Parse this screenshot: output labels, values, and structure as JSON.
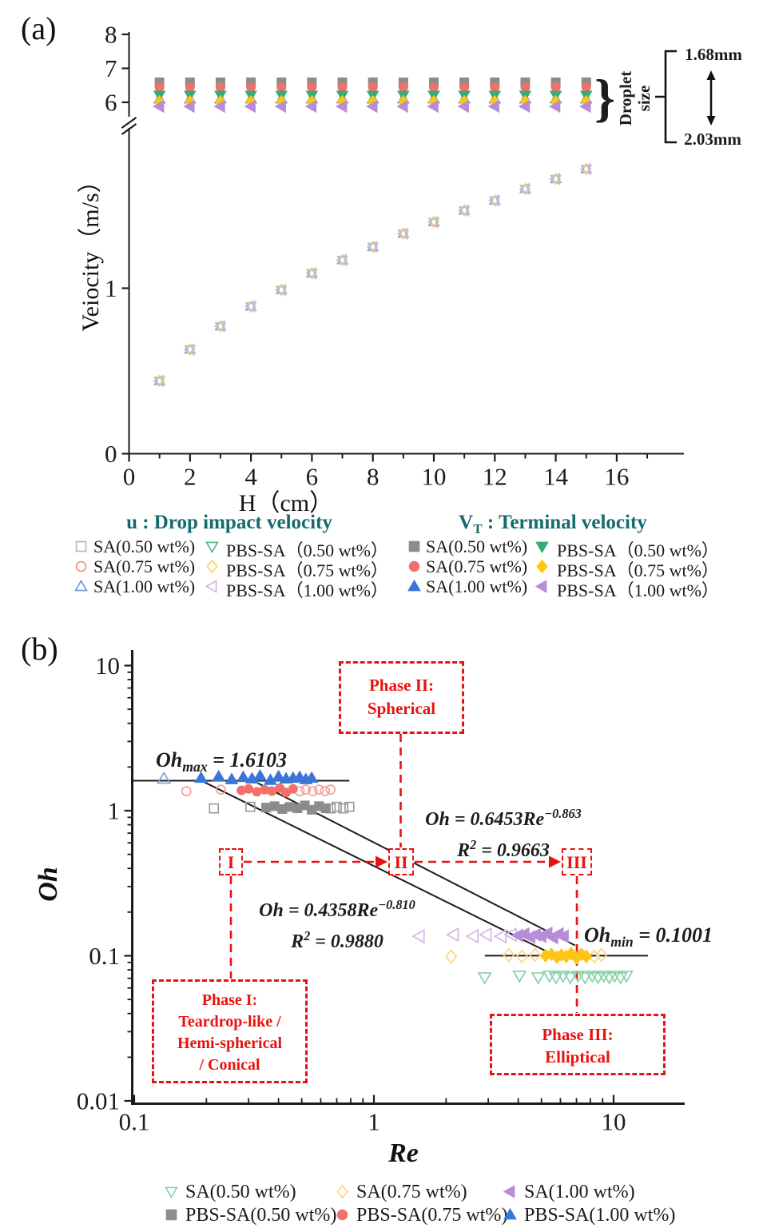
{
  "figure": {
    "panel_a_label": "(a)",
    "panel_b_label": "(b)"
  },
  "chart_data": [
    {
      "type": "scatter",
      "panel": "a",
      "xlabel": "H（cm）",
      "ylabel": "Veiocity（m/s）",
      "x_ticks": [
        0,
        2,
        4,
        6,
        8,
        10,
        12,
        14,
        16
      ],
      "x_minor_ticks": [
        1,
        3,
        5,
        7,
        9,
        11,
        13,
        15,
        17
      ],
      "y_upper_ticks": [
        8,
        7,
        6
      ],
      "y_lower_ticks": [
        1,
        0
      ],
      "y_axis_break": true,
      "xlim": [
        0,
        17.5
      ],
      "H": [
        1,
        2,
        3,
        4,
        5,
        6,
        7,
        8,
        9,
        10,
        11,
        12,
        13,
        14,
        15
      ],
      "impact_velocity": {
        "label": "u : Drop impact velocity",
        "values": [
          0.44,
          0.63,
          0.77,
          0.89,
          0.99,
          1.09,
          1.17,
          1.25,
          1.33,
          1.4,
          1.47,
          1.53,
          1.6,
          1.66,
          1.72
        ]
      },
      "impact_markers": [
        {
          "marker": "square",
          "color": "#b5b5b5"
        },
        {
          "marker": "circle",
          "color": "#f29a94"
        },
        {
          "marker": "triangle-up",
          "color": "#8aa6e4"
        },
        {
          "marker": "triangle-down",
          "color": "#8ed2ab"
        },
        {
          "marker": "diamond",
          "color": "#ffd060"
        },
        {
          "marker": "triangle-left",
          "color": "#cdb4e6"
        }
      ],
      "terminal_series": [
        {
          "name": "SA(1.00 wt%)",
          "marker": "triangle-up",
          "color": "#3a76d8",
          "velocity": 6.1
        },
        {
          "name": "SA(0.50 wt%)",
          "marker": "square",
          "color": "#8c8c8c",
          "velocity": 6.59
        },
        {
          "name": "SA(0.75 wt%)",
          "marker": "circle",
          "color": "#f2706c",
          "velocity": 6.44
        },
        {
          "name": "PBS-SA（0.50 wt%）",
          "marker": "triangle-down",
          "color": "#35ad72",
          "velocity": 6.21
        },
        {
          "name": "PBS-SA（0.75 wt%）",
          "marker": "diamond",
          "color": "#ffc514",
          "velocity": 6.02
        },
        {
          "name": "PBS-SA（1.00 wt%）",
          "marker": "triangle-left",
          "color": "#b78dd8",
          "velocity": 5.88
        }
      ],
      "droplet_annotation": {
        "brace": "}",
        "line1": "Droplet",
        "line2": "size",
        "top": "1.68mm",
        "bottom": "2.03mm"
      }
    },
    {
      "type": "scatter",
      "panel": "b",
      "xlabel": "Re",
      "ylabel": "Oh",
      "x_scale": "log",
      "y_scale": "log",
      "x_tick_labels": [
        "0.1",
        "1",
        "10"
      ],
      "x_tick_values": [
        0.1,
        1,
        10
      ],
      "y_tick_labels": [
        "10",
        "1",
        "0.1",
        "0.01"
      ],
      "y_tick_values": [
        10,
        1,
        0.1,
        0.01
      ],
      "oh_max": 1.6103,
      "oh_min": 0.1001,
      "fits": [
        {
          "equation": "Oh = 0.6453Re^-0.863",
          "r2": 0.9663
        },
        {
          "equation": "Oh = 0.4358Re^-0.810",
          "r2": 0.988
        }
      ],
      "series": [
        {
          "name": "SA(0.50 wt%)",
          "marker": "triangle-down",
          "color": "#85d1a8",
          "oh": 0.072,
          "re_open": [
            2.9,
            4.05,
            4.85,
            5.4,
            5.75,
            6.15,
            6.6,
            7.1,
            7.6,
            8.15,
            8.6,
            9.1,
            9.6,
            10.1,
            10.7,
            11.3
          ],
          "re_filled": []
        },
        {
          "name": "SA(0.75 wt%)",
          "marker": "diamond",
          "color": "#ffc514",
          "open_color": "#ffd67c",
          "oh": 0.1001,
          "re_open": [
            2.1,
            3.65,
            4.15,
            4.7,
            8.3,
            8.9
          ],
          "re_filled": [
            5.2,
            5.5,
            5.8,
            6.05,
            6.35,
            6.65,
            7.0,
            7.35,
            7.7
          ]
        },
        {
          "name": "SA(1.00 wt%)",
          "marker": "triangle-left",
          "color": "#b78dd8",
          "open_color": "#cfb7e8",
          "oh": 0.138,
          "re_open": [
            1.55,
            2.15,
            2.6,
            2.95,
            3.4,
            3.75
          ],
          "re_filled": [
            4.0,
            4.25,
            4.5,
            4.75,
            5.0,
            5.3,
            5.6,
            5.9,
            6.2
          ]
        },
        {
          "name": "PBS-SA(0.50 wt%)",
          "marker": "square",
          "color": "#8c8c8c",
          "open_color": "#9c9c9c",
          "oh": 1.05,
          "re_open": [
            0.215,
            0.305,
            0.66,
            0.7,
            0.745,
            0.79
          ],
          "re_filled": [
            0.355,
            0.385,
            0.415,
            0.445,
            0.48,
            0.515,
            0.55,
            0.59,
            0.63
          ]
        },
        {
          "name": "PBS-SA(0.75 wt%)",
          "marker": "circle",
          "color": "#f2706c",
          "open_color": "#f4a09a",
          "oh": 1.38,
          "re_open": [
            0.165,
            0.23,
            0.49,
            0.52,
            0.555,
            0.59,
            0.625,
            0.66
          ],
          "re_filled": [
            0.28,
            0.3,
            0.325,
            0.35,
            0.375,
            0.405,
            0.43,
            0.46
          ]
        },
        {
          "name": "PBS-SA(1.00 wt%)",
          "marker": "triangle-up",
          "color": "#3a76d8",
          "open_color": "#7f9de2",
          "oh": 1.68,
          "re_open": [
            0.133
          ],
          "re_filled": [
            0.19,
            0.225,
            0.255,
            0.285,
            0.31,
            0.335,
            0.37,
            0.4,
            0.43,
            0.46,
            0.49,
            0.52,
            0.55
          ]
        }
      ],
      "lines": {
        "ohmax": {
          "oh": 1.6103,
          "re_from": 0.1,
          "re_to": 0.79
        },
        "ohmin": {
          "oh": 0.1001,
          "re_from": 2.9,
          "re_to": 13.9
        },
        "fits": [
          {
            "re_from": 0.195,
            "oh_from": 1.58,
            "re_to": 5.45,
            "oh_to": 0.104
          },
          {
            "re_from": 0.32,
            "oh_from": 1.58,
            "re_to": 6.9,
            "oh_to": 0.118
          }
        ]
      }
    }
  ],
  "panel_a_legend": {
    "left_header": "u : Drop impact velocity",
    "right_header": {
      "pre": "V",
      "sub": "T",
      "post": " : Terminal velocity"
    },
    "left_items": [
      {
        "marker": "square",
        "color": "#b5b5b5",
        "filled": false,
        "label": "SA(0.50 wt%)"
      },
      {
        "marker": "triangle-down",
        "color": "#4cba82",
        "filled": false,
        "label": "PBS-SA（0.50 wt%）"
      },
      {
        "marker": "circle",
        "color": "#f2877f",
        "filled": false,
        "label": "SA(0.75 wt%)"
      },
      {
        "marker": "diamond",
        "color": "#ffd060",
        "filled": false,
        "label": "PBS-SA（0.75 wt%）"
      },
      {
        "marker": "triangle-up",
        "color": "#6f93de",
        "filled": false,
        "label": "SA(1.00 wt%)"
      },
      {
        "marker": "triangle-left",
        "color": "#cdb4e6",
        "filled": false,
        "label": "PBS-SA（1.00 wt%）"
      }
    ],
    "right_items": [
      {
        "marker": "square",
        "color": "#8c8c8c",
        "filled": true,
        "label": "SA(0.50 wt%)"
      },
      {
        "marker": "triangle-down",
        "color": "#35ad72",
        "filled": true,
        "label": "PBS-SA（0.50 wt%）"
      },
      {
        "marker": "circle",
        "color": "#f2706c",
        "filled": true,
        "label": "SA(0.75 wt%)"
      },
      {
        "marker": "diamond",
        "color": "#ffc514",
        "filled": true,
        "label": "PBS-SA（0.75 wt%）"
      },
      {
        "marker": "triangle-up",
        "color": "#3a76d8",
        "filled": true,
        "label": "SA(1.00 wt%)"
      },
      {
        "marker": "triangle-left",
        "color": "#b78dd8",
        "filled": true,
        "label": "PBS-SA（1.00 wt%）"
      }
    ]
  },
  "panel_b_legend": {
    "items": [
      {
        "marker": "triangle-down",
        "color": "#85d1a8",
        "filled": false,
        "label": "SA(0.50 wt%)"
      },
      {
        "marker": "diamond",
        "color": "#ffd67c",
        "filled": false,
        "label": "SA(0.75 wt%)"
      },
      {
        "marker": "triangle-left",
        "color": "#b78dd8",
        "filled": true,
        "label": "SA(1.00 wt%)"
      },
      {
        "marker": "square",
        "color": "#8c8c8c",
        "filled": true,
        "label": "PBS-SA(0.50 wt%)"
      },
      {
        "marker": "circle",
        "color": "#f2706c",
        "filled": true,
        "label": "PBS-SA(0.75 wt%)"
      },
      {
        "marker": "triangle-up",
        "color": "#3a76d8",
        "filled": true,
        "label": "PBS-SA(1.00 wt%)"
      }
    ]
  },
  "panel_b_annotations": {
    "ohmax_label": {
      "main": "Oh",
      "sub": "max",
      "rest": " = 1.6103"
    },
    "ohmin_label": {
      "main": "Oh",
      "sub": "min",
      "rest": " = 0.1001"
    },
    "eq_upper": {
      "oh": "Oh",
      "eq": " = 0.6453",
      "re": "Re",
      "exp": "−0.863",
      "r2_base": "R",
      "r2_exp": "2",
      "r2_rest": " = 0.9663"
    },
    "eq_lower": {
      "oh": "Oh",
      "eq": " = 0.4358",
      "re": "Re",
      "exp": "−0.810",
      "r2_base": "R",
      "r2_exp": "2",
      "r2_rest": " = 0.9880"
    },
    "phase1": {
      "l1": "Phase I:",
      "l2": "Teardrop-like /",
      "l3": "Hemi-spherical",
      "l4": "/ Conical"
    },
    "phase2": {
      "l1": "Phase II:",
      "l2": "Spherical"
    },
    "phase3": {
      "l1": "Phase III:",
      "l2": "Elliptical"
    },
    "roman_1": "I",
    "roman_2": "II",
    "roman_3": "III"
  }
}
